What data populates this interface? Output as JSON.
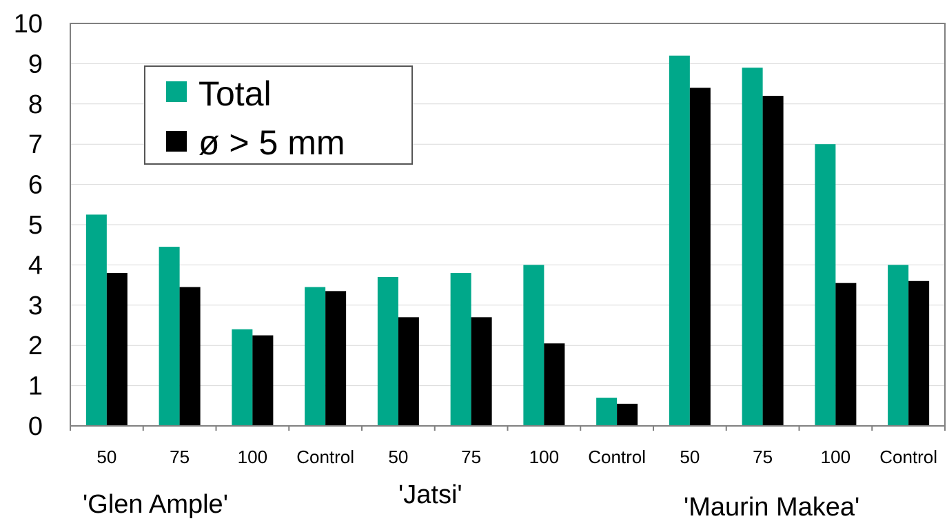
{
  "chart_data": {
    "type": "bar",
    "ylim": [
      0,
      10
    ],
    "yticks": [
      "0",
      "1",
      "2",
      "3",
      "4",
      "5",
      "6",
      "7",
      "8",
      "9",
      "10"
    ],
    "categories": [
      "50",
      "75",
      "100",
      "Control",
      "50",
      "75",
      "100",
      "Control",
      "50",
      "75",
      "100",
      "Control"
    ],
    "groups": [
      {
        "label": "'Glen Ample'"
      },
      {
        "label": "'Jatsi'"
      },
      {
        "label": "'Maurin Makea'"
      }
    ],
    "series": [
      {
        "name": "Total",
        "color": "#00a88a",
        "values": [
          5.25,
          4.45,
          2.4,
          3.45,
          3.7,
          3.8,
          4.0,
          0.7,
          9.2,
          8.9,
          7.0,
          4.0
        ]
      },
      {
        "name": "ø > 5 mm",
        "color": "#000000",
        "values": [
          3.8,
          3.45,
          2.25,
          3.35,
          2.7,
          2.7,
          2.05,
          0.55,
          8.4,
          8.2,
          3.55,
          3.6
        ]
      }
    ],
    "grid": true,
    "legend_position": "top-left"
  }
}
